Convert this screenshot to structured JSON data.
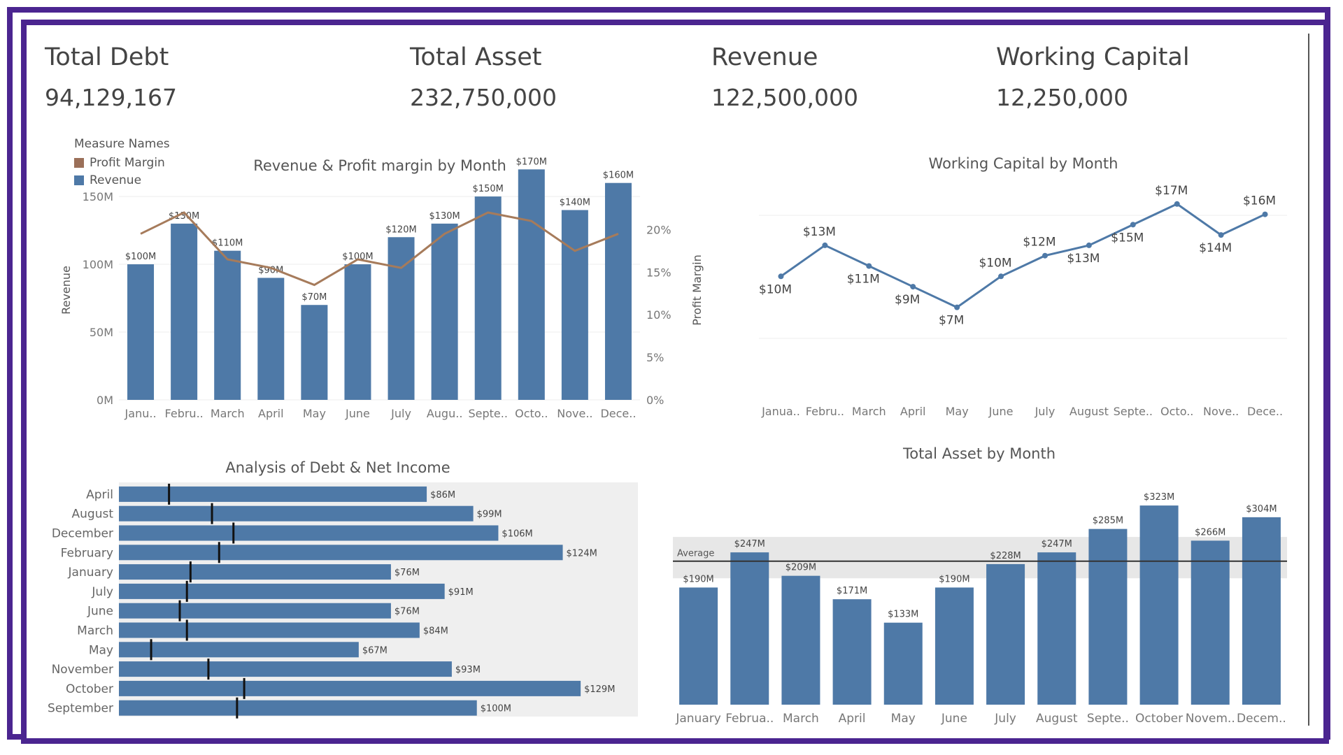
{
  "kpis": [
    {
      "label": "Total Debt",
      "value": "94,129,167"
    },
    {
      "label": "Total Asset",
      "value": "232,750,000"
    },
    {
      "label": "Revenue",
      "value": "122,500,000"
    },
    {
      "label": "Working Capital",
      "value": "12,250,000"
    }
  ],
  "legend": {
    "title": "Measure Names",
    "items": [
      {
        "name": "Profit Margin",
        "color": "#9b7059"
      },
      {
        "name": "Revenue",
        "color": "#4e79a7"
      }
    ]
  },
  "colors": {
    "bar": "#4e79a7",
    "line_profit": "#a67b5b",
    "frame": "#4b2590",
    "grid": "#ececec",
    "panel_bg": "#efefef"
  },
  "chart_data": [
    {
      "id": "revenue_profit",
      "type": "bar",
      "title": "Revenue & Profit margin by Month",
      "categories": [
        "Janu..",
        "Febru..",
        "March",
        "April",
        "May",
        "June",
        "July",
        "Augu..",
        "Septe..",
        "Octo..",
        "Nove..",
        "Dece.."
      ],
      "series": [
        {
          "name": "Revenue",
          "values": [
            100,
            130,
            110,
            90,
            70,
            100,
            120,
            130,
            150,
            170,
            140,
            160
          ],
          "labels": [
            "$100M",
            "$130M",
            "$110M",
            "$90M",
            "$70M",
            "$100M",
            "$120M",
            "$130M",
            "$150M",
            "$170M",
            "$140M",
            "$160M"
          ]
        },
        {
          "name": "Profit Margin",
          "values": [
            19.5,
            22,
            16.5,
            15.5,
            13.5,
            16.5,
            15.5,
            19.5,
            22,
            21,
            17.5,
            19.5
          ]
        }
      ],
      "ylabel": "Revenue",
      "y2label": "Profit Margin",
      "ylim": [
        0,
        165
      ],
      "yticks": [
        "0M",
        "50M",
        "100M",
        "150M"
      ],
      "y2lim": [
        0,
        22
      ],
      "y2ticks": [
        "0%",
        "5%",
        "10%",
        "15%",
        "20%"
      ]
    },
    {
      "id": "working_capital",
      "type": "line",
      "title": "Working Capital by Month",
      "categories": [
        "Janua..",
        "Febru..",
        "March",
        "April",
        "May",
        "June",
        "July",
        "August",
        "Septe..",
        "Octo..",
        "Nove..",
        "Dece.."
      ],
      "values": [
        10,
        13,
        11,
        9,
        7,
        10,
        12,
        13,
        15,
        17,
        14,
        16
      ],
      "labels": [
        "$10M",
        "$13M",
        "$11M",
        "$9M",
        "$7M",
        "$10M",
        "$12M",
        "$13M",
        "$15M",
        "$17M",
        "$14M",
        "$16M"
      ],
      "ylim": [
        0,
        18
      ]
    },
    {
      "id": "debt_net_income",
      "type": "bar",
      "orientation": "horizontal",
      "title": "Analysis of Debt & Net Income",
      "categories": [
        "April",
        "August",
        "December",
        "February",
        "January",
        "July",
        "June",
        "March",
        "May",
        "November",
        "October",
        "September"
      ],
      "values": [
        86,
        99,
        106,
        124,
        76,
        91,
        76,
        84,
        67,
        93,
        129,
        100
      ],
      "labels": [
        "$86M",
        "$99M",
        "$106M",
        "$124M",
        "$76M",
        "$91M",
        "$76M",
        "$84M",
        "$67M",
        "$93M",
        "$129M",
        "$100M"
      ],
      "reference_values": [
        14,
        26,
        32,
        28,
        20,
        19,
        17,
        19,
        9,
        25,
        35,
        33
      ],
      "xlim": [
        0,
        145
      ]
    },
    {
      "id": "total_asset",
      "type": "bar",
      "title": "Total Asset by Month",
      "categories": [
        "January",
        "Februa..",
        "March",
        "April",
        "May",
        "June",
        "July",
        "August",
        "Septe..",
        "October",
        "Novem..",
        "Decem.."
      ],
      "values": [
        190,
        247,
        209,
        171,
        133,
        190,
        228,
        247,
        285,
        323,
        266,
        304
      ],
      "labels": [
        "$190M",
        "$247M",
        "$209M",
        "$171M",
        "$133M",
        "$190M",
        "$228M",
        "$247M",
        "$285M",
        "$323M",
        "$266M",
        "$304M"
      ],
      "reference_line": {
        "label": "Average",
        "value": 232.75,
        "band": [
          205,
          272
        ]
      },
      "ylim": [
        0,
        340
      ]
    }
  ]
}
